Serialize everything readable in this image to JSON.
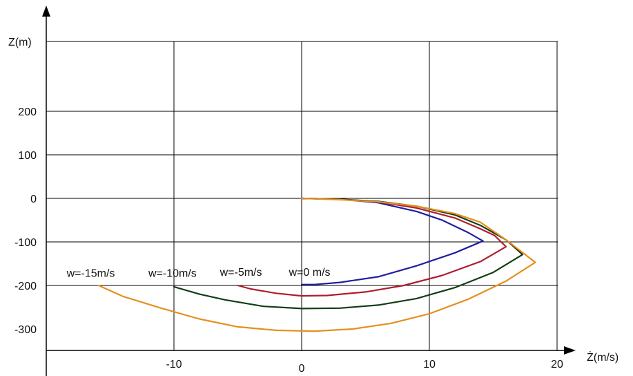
{
  "chart_data": {
    "type": "line",
    "xlabel": "Ż(m/s)",
    "ylabel": "Z(m)",
    "xlim": [
      -20,
      20
    ],
    "ylim": [
      -350,
      350
    ],
    "x_ticks": [
      {
        "value": -10,
        "label": "-10"
      },
      {
        "value": 0,
        "label": "0"
      },
      {
        "value": 10,
        "label": "10"
      },
      {
        "value": 20,
        "label": "20"
      }
    ],
    "y_ticks": [
      {
        "value": 200,
        "label": "200"
      },
      {
        "value": 100,
        "label": "100"
      },
      {
        "value": 0,
        "label": "0"
      },
      {
        "value": -100,
        "label": "-100"
      },
      {
        "value": -200,
        "label": "-200"
      },
      {
        "value": -300,
        "label": "-300"
      }
    ],
    "grid": true,
    "series": [
      {
        "name": "w=0 m/s",
        "color": "#1f1fa0",
        "x": [
          0,
          3,
          6,
          9,
          11,
          13,
          14.2,
          12,
          9,
          6,
          3,
          1,
          0
        ],
        "y": [
          0,
          -2,
          -10,
          -30,
          -50,
          -78,
          -98,
          -125,
          -155,
          -180,
          -193,
          -198,
          -198
        ]
      },
      {
        "name": "w=-5m/s",
        "color": "#b01c2e",
        "x": [
          0,
          3,
          6,
          9,
          12,
          14,
          15.1,
          16.0,
          14,
          11,
          8,
          5,
          2,
          0,
          -2,
          -4,
          -5
        ],
        "y": [
          0,
          -2,
          -8,
          -22,
          -45,
          -70,
          -85,
          -111,
          -145,
          -177,
          -200,
          -215,
          -223,
          -224,
          -218,
          -208,
          -200
        ]
      },
      {
        "name": "w=-10m/s",
        "color": "#123c12",
        "x": [
          0,
          3,
          6,
          9,
          12,
          14,
          16,
          17.3,
          15,
          12,
          9,
          6,
          3,
          0,
          -3,
          -6,
          -8,
          -10
        ],
        "y": [
          0,
          -2,
          -7,
          -18,
          -38,
          -62,
          -95,
          -129,
          -170,
          -205,
          -230,
          -245,
          -252,
          -253,
          -248,
          -233,
          -220,
          -203
        ]
      },
      {
        "name": "w=-15m/s",
        "color": "#e58f1e",
        "x": [
          0,
          3,
          6,
          9,
          12,
          14,
          16,
          18.3,
          16,
          13,
          10,
          7,
          4,
          1,
          -2,
          -5,
          -8,
          -11,
          -14,
          -15.9
        ],
        "y": [
          0,
          -3,
          -8,
          -18,
          -35,
          -55,
          -95,
          -147,
          -190,
          -232,
          -265,
          -287,
          -300,
          -305,
          -303,
          -295,
          -277,
          -252,
          -225,
          -200
        ]
      }
    ],
    "series_labels": [
      {
        "text": "w=-15m/s",
        "x": -18.4,
        "y": -180
      },
      {
        "text": "w=-10m/s",
        "x": -12.0,
        "y": -180
      },
      {
        "text": "w=-5m/s",
        "x": -6.4,
        "y": -178
      },
      {
        "text": "w=0 m/s",
        "x": -1.0,
        "y": -178
      }
    ]
  }
}
